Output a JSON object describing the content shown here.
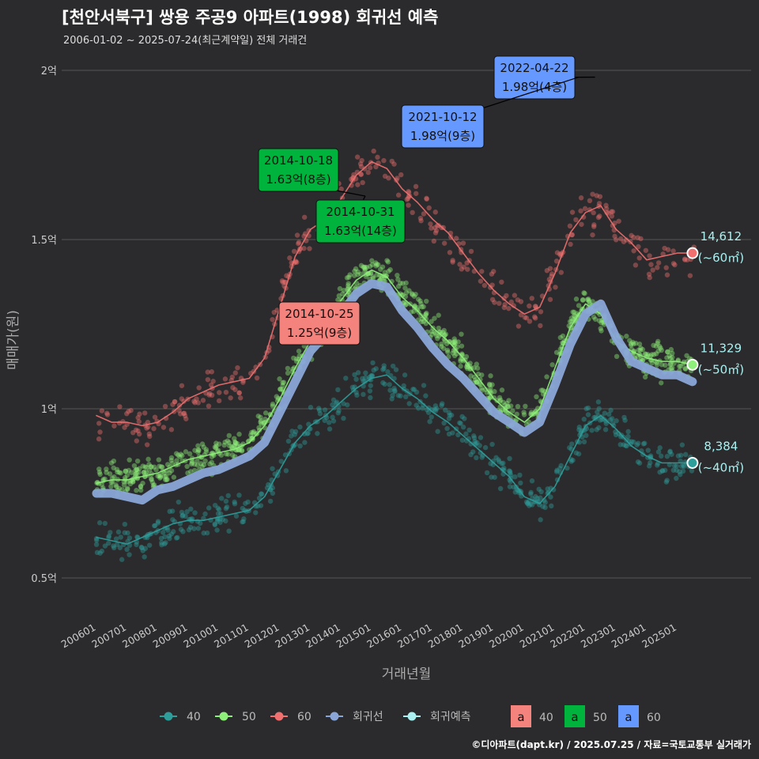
{
  "header": {
    "title": "[천안서북구] 쌍용 주공9 아파트(1998) 회귀선 예측",
    "subtitle": "2006-01-02 ~ 2025-07-24(최근계약일) 전체 거래건"
  },
  "footer": {
    "credit": "©디아파트(dapt.kr) / 2025.07.25 / 자료=국토교통부 실거래가"
  },
  "colors": {
    "background": "#2b2b2d",
    "grid": "#555555",
    "s40": "#2e9e9b",
    "s50": "#8ef07a",
    "s60": "#f07070",
    "regression": "#8aa6d8",
    "forecast": "#aaf0f0",
    "label60": "#f4827d",
    "label50": "#00b33c",
    "label40": "#6699ff"
  },
  "chart_data": {
    "type": "line",
    "title": "[천안서북구] 쌍용 주공9 아파트(1998) 회귀선 예측",
    "xlabel": "거래년월",
    "ylabel": "매매가(원)",
    "xlim": [
      2006.0,
      2025.58
    ],
    "ylim": [
      0.5,
      2.0
    ],
    "y_unit": "억",
    "y_ticks": [
      {
        "value": 0.5,
        "label": "0.5억"
      },
      {
        "value": 1.0,
        "label": "1억"
      },
      {
        "value": 1.5,
        "label": "1.5억"
      },
      {
        "value": 2.0,
        "label": "2억"
      }
    ],
    "x_ticks": [
      "200601",
      "200701",
      "200801",
      "200901",
      "201001",
      "201101",
      "201201",
      "201301",
      "201401",
      "201501",
      "201601",
      "201701",
      "201801",
      "201901",
      "202001",
      "202101",
      "202201",
      "202301",
      "202401",
      "202501"
    ],
    "series": [
      {
        "name": "60",
        "x": [
          2006.0,
          2006.5,
          2007.0,
          2007.5,
          2008.0,
          2008.5,
          2009.0,
          2009.5,
          2010.0,
          2010.5,
          2011.0,
          2011.5,
          2012.0,
          2012.5,
          2013.0,
          2013.5,
          2014.0,
          2014.5,
          2015.0,
          2015.5,
          2016.0,
          2016.5,
          2017.0,
          2017.5,
          2018.0,
          2018.5,
          2019.0,
          2019.5,
          2020.0,
          2020.5,
          2021.0,
          2021.5,
          2022.0,
          2022.5,
          2023.0,
          2023.5,
          2024.0,
          2024.5,
          2025.0,
          2025.5
        ],
        "values": [
          0.98,
          0.96,
          0.96,
          0.95,
          0.96,
          0.99,
          1.03,
          1.05,
          1.07,
          1.08,
          1.09,
          1.15,
          1.3,
          1.45,
          1.53,
          1.56,
          1.62,
          1.69,
          1.73,
          1.71,
          1.65,
          1.61,
          1.56,
          1.52,
          1.46,
          1.4,
          1.35,
          1.31,
          1.28,
          1.3,
          1.4,
          1.52,
          1.58,
          1.6,
          1.53,
          1.49,
          1.44,
          1.45,
          1.46,
          1.46
        ]
      },
      {
        "name": "50",
        "x": [
          2006.0,
          2006.5,
          2007.0,
          2007.5,
          2008.0,
          2008.5,
          2009.0,
          2009.5,
          2010.0,
          2010.5,
          2011.0,
          2011.5,
          2012.0,
          2012.5,
          2013.0,
          2013.5,
          2014.0,
          2014.5,
          2015.0,
          2015.5,
          2016.0,
          2016.5,
          2017.0,
          2017.5,
          2018.0,
          2018.5,
          2019.0,
          2019.5,
          2020.0,
          2020.5,
          2021.0,
          2021.5,
          2022.0,
          2022.5,
          2023.0,
          2023.5,
          2024.0,
          2024.5,
          2025.0,
          2025.5
        ],
        "values": [
          0.78,
          0.79,
          0.79,
          0.8,
          0.81,
          0.83,
          0.85,
          0.86,
          0.87,
          0.88,
          0.9,
          0.95,
          1.03,
          1.12,
          1.2,
          1.25,
          1.32,
          1.38,
          1.41,
          1.39,
          1.33,
          1.29,
          1.24,
          1.2,
          1.15,
          1.09,
          1.03,
          0.99,
          0.96,
          1.0,
          1.12,
          1.24,
          1.31,
          1.28,
          1.2,
          1.17,
          1.15,
          1.14,
          1.14,
          1.13
        ]
      },
      {
        "name": "40",
        "x": [
          2006.0,
          2006.5,
          2007.0,
          2007.5,
          2008.0,
          2008.5,
          2009.0,
          2009.5,
          2010.0,
          2010.5,
          2011.0,
          2011.5,
          2012.0,
          2012.5,
          2013.0,
          2013.5,
          2014.0,
          2014.5,
          2015.0,
          2015.5,
          2016.0,
          2016.5,
          2017.0,
          2017.5,
          2018.0,
          2018.5,
          2019.0,
          2019.5,
          2020.0,
          2020.5,
          2021.0,
          2021.5,
          2022.0,
          2022.5,
          2023.0,
          2023.5,
          2024.0,
          2024.5,
          2025.0,
          2025.5
        ],
        "values": [
          0.62,
          0.61,
          0.6,
          0.62,
          0.64,
          0.66,
          0.67,
          0.67,
          0.68,
          0.69,
          0.7,
          0.74,
          0.82,
          0.9,
          0.95,
          0.98,
          1.02,
          1.06,
          1.09,
          1.1,
          1.06,
          1.03,
          0.99,
          0.96,
          0.92,
          0.88,
          0.84,
          0.8,
          0.74,
          0.72,
          0.77,
          0.86,
          0.95,
          0.98,
          0.94,
          0.89,
          0.86,
          0.84,
          0.84,
          0.84
        ]
      },
      {
        "name": "회귀선",
        "x": [
          2006.0,
          2006.5,
          2007.0,
          2007.5,
          2008.0,
          2008.5,
          2009.0,
          2009.5,
          2010.0,
          2010.5,
          2011.0,
          2011.5,
          2012.0,
          2012.5,
          2013.0,
          2013.5,
          2014.0,
          2014.5,
          2015.0,
          2015.5,
          2016.0,
          2016.5,
          2017.0,
          2017.5,
          2018.0,
          2018.5,
          2019.0,
          2019.5,
          2020.0,
          2020.5,
          2021.0,
          2021.5,
          2022.0,
          2022.5,
          2023.0,
          2023.5,
          2024.0,
          2024.5,
          2025.0,
          2025.5
        ],
        "values": [
          0.75,
          0.75,
          0.74,
          0.73,
          0.76,
          0.77,
          0.79,
          0.81,
          0.82,
          0.84,
          0.86,
          0.9,
          0.99,
          1.08,
          1.17,
          1.22,
          1.28,
          1.34,
          1.37,
          1.36,
          1.29,
          1.24,
          1.18,
          1.13,
          1.09,
          1.04,
          0.99,
          0.96,
          0.93,
          0.96,
          1.07,
          1.19,
          1.28,
          1.31,
          1.21,
          1.14,
          1.12,
          1.1,
          1.1,
          1.08
        ]
      }
    ],
    "endpoints": [
      {
        "series": "60",
        "x": 2025.5,
        "y": 1.46,
        "count": "14,612",
        "area": "(~60㎡)"
      },
      {
        "series": "50",
        "x": 2025.5,
        "y": 1.13,
        "count": "11,329",
        "area": "(~50㎡)"
      },
      {
        "series": "40",
        "x": 2025.5,
        "y": 0.84,
        "count": "8,384",
        "area": "(~40㎡)"
      }
    ],
    "annotations": [
      {
        "date": "2022-04-22",
        "price": "1.98억(4층)",
        "group": "60",
        "x": 2022.31,
        "y": 1.98
      },
      {
        "date": "2021-10-12",
        "price": "1.98억(9층)",
        "group": "60",
        "x": 2021.78,
        "y": 1.98
      },
      {
        "date": "2014-10-18",
        "price": "1.63억(8층)",
        "group": "50",
        "x": 2014.8,
        "y": 1.63
      },
      {
        "date": "2014-10-31",
        "price": "1.63억(14층)",
        "group": "50",
        "x": 2014.83,
        "y": 1.63
      },
      {
        "date": "2014-10-25",
        "price": "1.25억(9층)",
        "group": "40",
        "x": 2014.81,
        "y": 1.25
      }
    ],
    "legend": {
      "placement": "bottom",
      "line_items": [
        {
          "label": "40",
          "series": "40"
        },
        {
          "label": "50",
          "series": "50"
        },
        {
          "label": "60",
          "series": "60"
        },
        {
          "label": "회귀선",
          "series": "회귀선"
        },
        {
          "label": "회귀예측",
          "series": "회귀예측"
        }
      ],
      "box_items": [
        {
          "letter": "a",
          "label": "40",
          "color": "#f4827d"
        },
        {
          "letter": "a",
          "label": "50",
          "color": "#00b33c"
        },
        {
          "letter": "a",
          "label": "60",
          "color": "#6699ff"
        }
      ]
    }
  }
}
